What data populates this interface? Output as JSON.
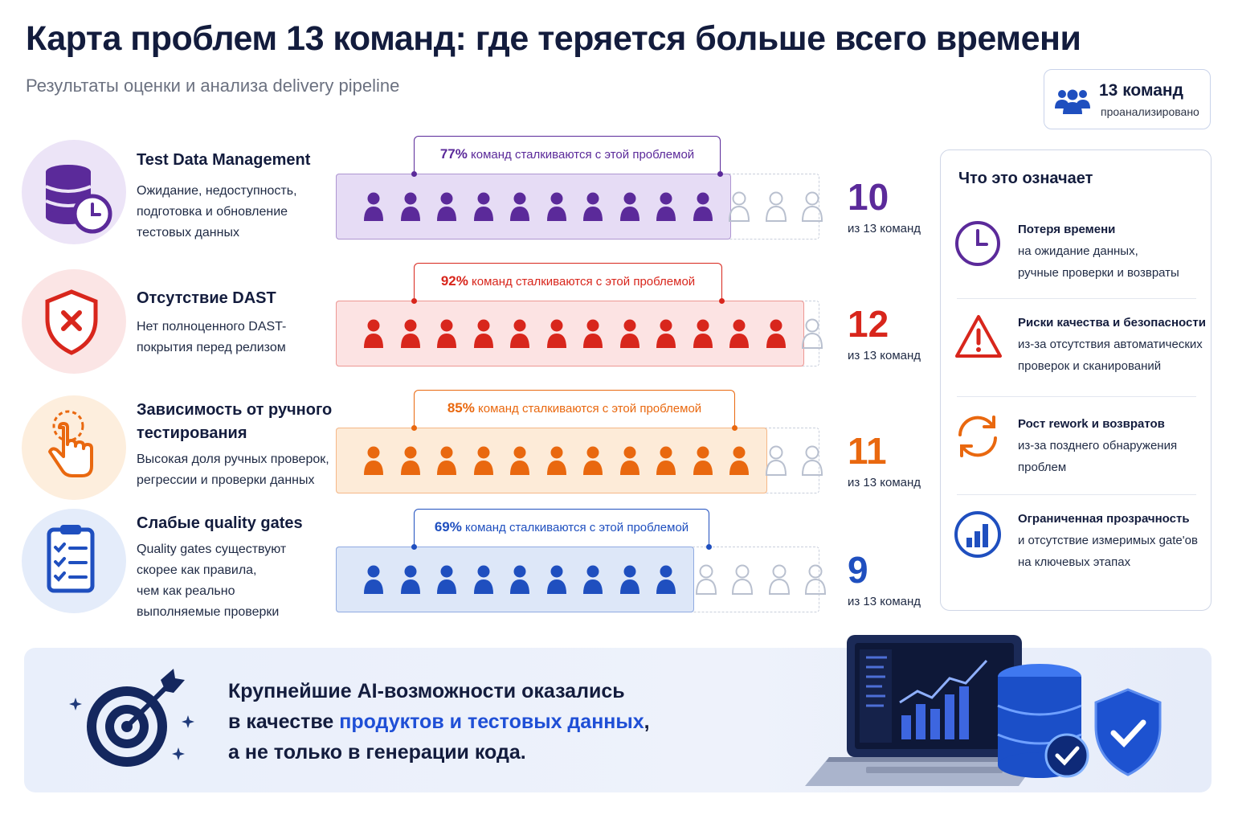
{
  "header": {
    "title": "Карта проблем 13 команд: где теряется больше всего времени",
    "subtitle": "Результаты оценки и анализа delivery pipeline"
  },
  "badge": {
    "count_label": "13 команд",
    "caption": "проанализировано",
    "icon": "team-icon"
  },
  "chart_data": {
    "type": "bar",
    "total": 13,
    "unit_label": "из 13 команд",
    "callout_suffix": "команд сталкиваются с этой проблемой",
    "categories": [
      "Test Data Management",
      "Отсутствие DAST",
      "Зависимость от ручного тестирования",
      "Слабые quality gates"
    ],
    "values": [
      10,
      12,
      11,
      9
    ],
    "percent_labels": [
      "77%",
      "92%",
      "85%",
      "69%"
    ],
    "colors": [
      "#5b2a9a",
      "#d8261c",
      "#e9680f",
      "#1f4fbf"
    ]
  },
  "rows": [
    {
      "title_lines": [
        "Test Data Management"
      ],
      "desc_lines": [
        "Ожидание, недоступность,",
        "подготовка и обновление",
        "тестовых данных"
      ],
      "icon": "database-clock-icon",
      "color": "#5b2a9a",
      "tint": "#ece4f7",
      "fill_bg": "#e6dcf5"
    },
    {
      "title_lines": [
        "Отсутствие DAST"
      ],
      "desc_lines": [
        "Нет полноценного DAST-",
        "покрытия перед релизом"
      ],
      "icon": "shield-x-icon",
      "color": "#d8261c",
      "tint": "#fbe5e5",
      "fill_bg": "#fce3e3"
    },
    {
      "title_lines": [
        "Зависимость от ручного",
        "тестирования"
      ],
      "desc_lines": [
        "Высокая доля ручных проверок,",
        "регрессии и проверки данных"
      ],
      "icon": "hand-tap-icon",
      "color": "#e9680f",
      "tint": "#fdeedd",
      "fill_bg": "#fdebd8"
    },
    {
      "title_lines": [
        "Слабые quality gates"
      ],
      "desc_lines": [
        "Quality gates существуют",
        "скорее как правила,",
        "чем как реально",
        "выполняемые проверки"
      ],
      "icon": "checklist-icon",
      "color": "#1f4fbf",
      "tint": "#e4ecfa",
      "fill_bg": "#dde7f8"
    }
  ],
  "panel": {
    "title": "Что это означает",
    "items": [
      {
        "title": "Потеря времени",
        "desc_lines": [
          "на ожидание данных,",
          "ручные проверки и возвраты"
        ],
        "icon": "clock-icon",
        "color": "#5b2a9a"
      },
      {
        "title": "Риски качества и безопасности",
        "desc_lines": [
          "из-за отсутствия автоматических",
          "проверок и сканирований"
        ],
        "icon": "warning-icon",
        "color": "#d8261c"
      },
      {
        "title": "Рост rework и возвратов",
        "desc_lines": [
          "из-за позднего обнаружения",
          "проблем"
        ],
        "icon": "refresh-icon",
        "color": "#e9680f"
      },
      {
        "title": "Ограниченная прозрачность",
        "desc_lines": [
          "и отсутствие измеримых gate'ов",
          "на ключевых этапах"
        ],
        "icon": "bar-chart-icon",
        "color": "#1f4fbf"
      }
    ]
  },
  "conclusion": {
    "line1": "Крупнейшие AI-возможности оказались",
    "line2_prefix": "в качестве ",
    "line2_highlight": "продуктов и тестовых данных",
    "line2_suffix": ",",
    "line3": "а не только в генерации кода.",
    "icons": [
      "target-icon",
      "laptop-dashboard-icon",
      "database-check-icon",
      "shield-check-icon"
    ]
  }
}
